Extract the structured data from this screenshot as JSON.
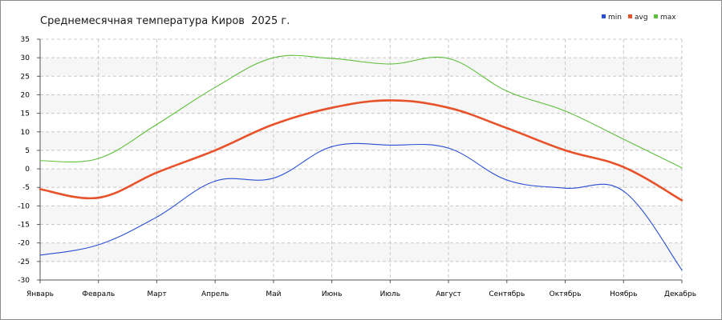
{
  "chart_data": {
    "type": "line",
    "title": "Среднемесячная температура Киров  2025 г.",
    "categories": [
      "Январь",
      "Февраль",
      "Март",
      "Апрель",
      "Май",
      "Июнь",
      "Июль",
      "Август",
      "Сентябрь",
      "Октябрь",
      "Ноябрь",
      "Декабрь"
    ],
    "y_ticks": [
      "35",
      "30",
      "25",
      "20",
      "15",
      "10",
      "5",
      "0",
      "-5",
      "-10",
      "-15",
      "-20",
      "-25",
      "-30"
    ],
    "ylim": [
      -30,
      35
    ],
    "grid": true,
    "legend_position": "top-right",
    "series": [
      {
        "name": "min",
        "color": "#2a4fd6",
        "values": [
          -23.3,
          -20.5,
          -13.0,
          -3.3,
          -2.5,
          6.0,
          6.4,
          5.6,
          -3.0,
          -5.2,
          -6.0,
          -27.3
        ]
      },
      {
        "name": "avg",
        "color": "#e8522a",
        "values": [
          -5.5,
          -7.8,
          -1.0,
          5.0,
          12.0,
          16.5,
          18.5,
          16.5,
          11.0,
          5.0,
          0.5,
          -8.5
        ]
      },
      {
        "name": "max",
        "color": "#5cbf3a",
        "values": [
          2.2,
          2.8,
          12.0,
          22.0,
          30.0,
          29.8,
          28.3,
          29.8,
          21.0,
          15.6,
          8.0,
          0.3
        ]
      }
    ]
  }
}
